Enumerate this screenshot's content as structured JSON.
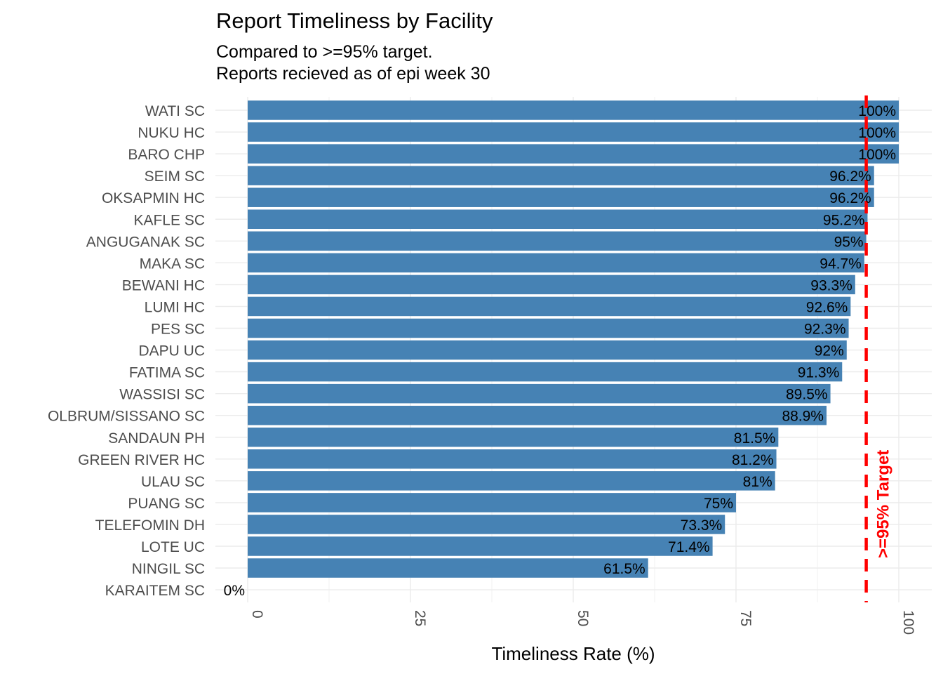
{
  "chart_data": {
    "type": "bar",
    "orientation": "horizontal",
    "title": "Report Timeliness by Facility",
    "subtitle_lines": [
      "Compared to >=95% target.",
      "Reports recieved as of epi week 30"
    ],
    "xlabel": "Timeliness Rate (%)",
    "ylabel": "",
    "xlim": [
      0,
      100
    ],
    "x_ticks": [
      0,
      25,
      50,
      75,
      100
    ],
    "x_tick_labels": [
      "0",
      "25",
      "50",
      "75",
      "100"
    ],
    "grid": true,
    "bar_color": "#4682B4",
    "categories": [
      "WATI SC",
      "NUKU HC",
      "BARO CHP",
      "SEIM SC",
      "OKSAPMIN HC",
      "KAFLE SC",
      "ANGUGANAK SC",
      "MAKA SC",
      "BEWANI HC",
      "LUMI HC",
      "PES SC",
      "DAPU UC",
      "FATIMA SC",
      "WASSISI SC",
      "OLBRUM/SISSANO SC",
      "SANDAUN PH",
      "GREEN RIVER HC",
      "ULAU SC",
      "PUANG SC",
      "TELEFOMIN DH",
      "LOTE UC",
      "NINGIL SC",
      "KARAITEM SC"
    ],
    "values": [
      100,
      100,
      100,
      96.2,
      96.2,
      95.2,
      95,
      94.7,
      93.3,
      92.6,
      92.3,
      92,
      91.3,
      89.5,
      88.9,
      81.5,
      81.2,
      81,
      75,
      73.3,
      71.4,
      61.5,
      0
    ],
    "data_labels": [
      "100%",
      "100%",
      "100%",
      "96.2%",
      "96.2%",
      "95.2%",
      "95%",
      "94.7%",
      "93.3%",
      "92.6%",
      "92.3%",
      "92%",
      "91.3%",
      "89.5%",
      "88.9%",
      "81.5%",
      "81.2%",
      "81%",
      "75%",
      "73.3%",
      "71.4%",
      "61.5%",
      "0%"
    ],
    "reference_line": {
      "value": 95,
      "label": ">=95% Target",
      "color": "#FF0000",
      "style": "dashed"
    }
  }
}
